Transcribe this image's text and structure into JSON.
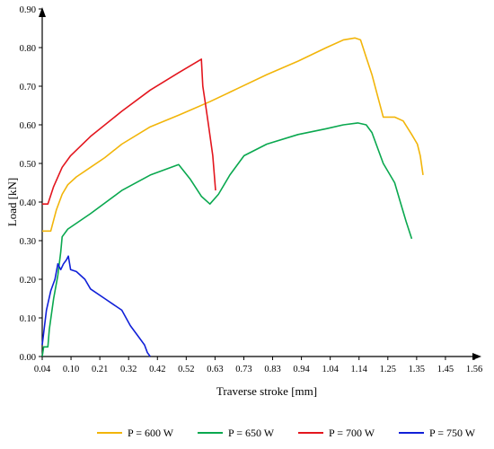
{
  "chart_data": {
    "type": "line",
    "xlabel": "Traverse stroke [mm]",
    "ylabel": "Load [kN]",
    "xlim": [
      0.04,
      1.56
    ],
    "ylim": [
      0,
      0.9
    ],
    "x_ticks": [
      "0.04",
      "0.10",
      "0.21",
      "0.32",
      "0.42",
      "0.52",
      "0.63",
      "0.73",
      "0.83",
      "0.94",
      "1.04",
      "1.14",
      "1.25",
      "1.35",
      "1.45",
      "1.56"
    ],
    "y_ticks": [
      "0.00",
      "0.10",
      "0.20",
      "0.30",
      "0.40",
      "0.50",
      "0.60",
      "0.70",
      "0.80",
      "0.90"
    ],
    "grid": false,
    "legend_position": "bottom",
    "series": [
      {
        "name": "P = 600 W",
        "color": "#F2B50A",
        "points": [
          [
            0.04,
            0.325
          ],
          [
            0.07,
            0.325
          ],
          [
            0.09,
            0.38
          ],
          [
            0.11,
            0.42
          ],
          [
            0.13,
            0.445
          ],
          [
            0.16,
            0.465
          ],
          [
            0.21,
            0.49
          ],
          [
            0.26,
            0.515
          ],
          [
            0.32,
            0.55
          ],
          [
            0.42,
            0.595
          ],
          [
            0.52,
            0.625
          ],
          [
            0.63,
            0.66
          ],
          [
            0.73,
            0.695
          ],
          [
            0.83,
            0.73
          ],
          [
            0.94,
            0.765
          ],
          [
            1.04,
            0.8
          ],
          [
            1.1,
            0.82
          ],
          [
            1.14,
            0.825
          ],
          [
            1.16,
            0.82
          ],
          [
            1.18,
            0.775
          ],
          [
            1.2,
            0.73
          ],
          [
            1.22,
            0.675
          ],
          [
            1.24,
            0.62
          ],
          [
            1.28,
            0.62
          ],
          [
            1.31,
            0.61
          ],
          [
            1.34,
            0.575
          ],
          [
            1.36,
            0.55
          ],
          [
            1.37,
            0.52
          ],
          [
            1.38,
            0.47
          ]
        ]
      },
      {
        "name": "P = 650 W",
        "color": "#0AA84F",
        "points": [
          [
            0.04,
            0.0
          ],
          [
            0.045,
            0.025
          ],
          [
            0.06,
            0.025
          ],
          [
            0.065,
            0.07
          ],
          [
            0.08,
            0.15
          ],
          [
            0.095,
            0.21
          ],
          [
            0.105,
            0.27
          ],
          [
            0.11,
            0.31
          ],
          [
            0.13,
            0.33
          ],
          [
            0.21,
            0.37
          ],
          [
            0.32,
            0.43
          ],
          [
            0.42,
            0.47
          ],
          [
            0.52,
            0.497
          ],
          [
            0.56,
            0.46
          ],
          [
            0.6,
            0.415
          ],
          [
            0.63,
            0.395
          ],
          [
            0.66,
            0.42
          ],
          [
            0.7,
            0.47
          ],
          [
            0.75,
            0.52
          ],
          [
            0.83,
            0.55
          ],
          [
            0.94,
            0.575
          ],
          [
            1.04,
            0.59
          ],
          [
            1.1,
            0.6
          ],
          [
            1.15,
            0.605
          ],
          [
            1.18,
            0.6
          ],
          [
            1.2,
            0.58
          ],
          [
            1.24,
            0.5
          ],
          [
            1.28,
            0.45
          ],
          [
            1.3,
            0.4
          ],
          [
            1.32,
            0.35
          ],
          [
            1.34,
            0.305
          ]
        ]
      },
      {
        "name": "P = 700 W",
        "color": "#E3161E",
        "points": [
          [
            0.04,
            0.395
          ],
          [
            0.06,
            0.395
          ],
          [
            0.08,
            0.44
          ],
          [
            0.11,
            0.49
          ],
          [
            0.14,
            0.52
          ],
          [
            0.21,
            0.57
          ],
          [
            0.32,
            0.635
          ],
          [
            0.42,
            0.69
          ],
          [
            0.52,
            0.735
          ],
          [
            0.6,
            0.77
          ],
          [
            0.605,
            0.7
          ],
          [
            0.615,
            0.65
          ],
          [
            0.625,
            0.6
          ],
          [
            0.64,
            0.52
          ],
          [
            0.65,
            0.43
          ]
        ]
      },
      {
        "name": "P = 750 W",
        "color": "#1020D8",
        "points": [
          [
            0.04,
            0.03
          ],
          [
            0.055,
            0.12
          ],
          [
            0.07,
            0.17
          ],
          [
            0.085,
            0.2
          ],
          [
            0.095,
            0.24
          ],
          [
            0.105,
            0.225
          ],
          [
            0.115,
            0.24
          ],
          [
            0.125,
            0.25
          ],
          [
            0.132,
            0.26
          ],
          [
            0.14,
            0.225
          ],
          [
            0.16,
            0.22
          ],
          [
            0.19,
            0.2
          ],
          [
            0.21,
            0.175
          ],
          [
            0.26,
            0.15
          ],
          [
            0.32,
            0.12
          ],
          [
            0.35,
            0.08
          ],
          [
            0.38,
            0.05
          ],
          [
            0.4,
            0.03
          ],
          [
            0.41,
            0.01
          ],
          [
            0.42,
            0.0
          ]
        ]
      }
    ]
  }
}
